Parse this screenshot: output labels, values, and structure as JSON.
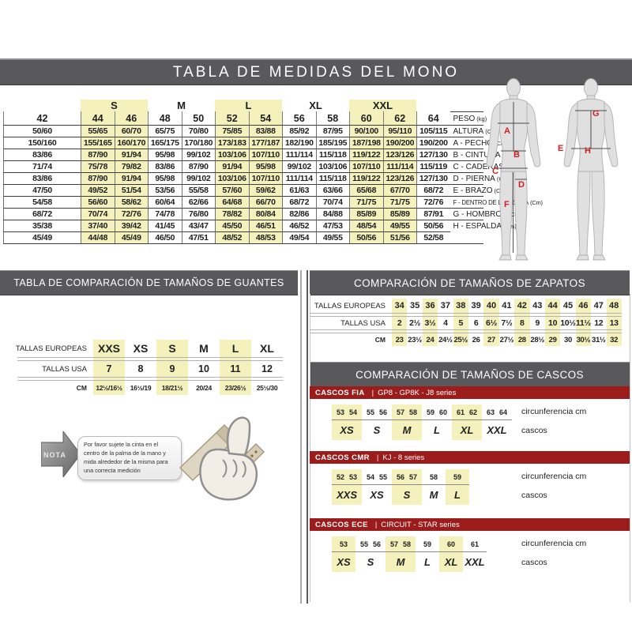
{
  "page": {
    "main_title": "TABLA DE MEDIDAS DEL MONO"
  },
  "mono_table": {
    "group_headers": [
      {
        "label": "",
        "span": 1,
        "highlight": false
      },
      {
        "label": "S",
        "span": 2,
        "highlight": true
      },
      {
        "label": "M",
        "span": 2,
        "highlight": false
      },
      {
        "label": "L",
        "span": 2,
        "highlight": true
      },
      {
        "label": "XL",
        "span": 2,
        "highlight": false
      },
      {
        "label": "XXL",
        "span": 2,
        "highlight": true
      },
      {
        "label": "",
        "span": 1,
        "highlight": false
      }
    ],
    "sizes": [
      "42",
      "44",
      "46",
      "48",
      "50",
      "52",
      "54",
      "56",
      "58",
      "60",
      "62",
      "64"
    ],
    "highlight_cols": [
      1,
      2,
      5,
      6,
      9,
      10
    ],
    "rows": [
      {
        "label": "PESO",
        "unit": "(kg)",
        "values": [
          "50/60",
          "55/65",
          "60/70",
          "65/75",
          "70/80",
          "75/85",
          "83/88",
          "85/92",
          "87/95",
          "90/100",
          "95/110",
          "105/115"
        ]
      },
      {
        "label": "ALTURA",
        "unit": "(Cm)",
        "values": [
          "150/160",
          "155/165",
          "160/170",
          "165/175",
          "170/180",
          "173/183",
          "177/187",
          "182/190",
          "185/195",
          "187/198",
          "190/200",
          "190/200"
        ]
      },
      {
        "label": "A - PECHO",
        "unit": "(Cm)",
        "values": [
          "83/86",
          "87/90",
          "91/94",
          "95/98",
          "99/102",
          "103/106",
          "107/110",
          "111/114",
          "115/118",
          "119/122",
          "123/126",
          "127/130"
        ]
      },
      {
        "label": "B - CINTURA",
        "unit": "(Cm)",
        "values": [
          "71/74",
          "75/78",
          "79/82",
          "83/86",
          "87/90",
          "91/94",
          "95/98",
          "99/102",
          "103/106",
          "107/110",
          "111/114",
          "115/119"
        ]
      },
      {
        "label": "C - CADERAS",
        "unit": "(Cm)",
        "values": [
          "83/86",
          "87/90",
          "91/94",
          "95/98",
          "99/102",
          "103/106",
          "107/110",
          "111/114",
          "115/118",
          "119/122",
          "123/126",
          "127/130"
        ]
      },
      {
        "label": "D - PIERNA",
        "unit": "(Cm)",
        "values": [
          "47/50",
          "49/52",
          "51/54",
          "53/56",
          "55/58",
          "57/60",
          "59/62",
          "61/63",
          "63/66",
          "65/68",
          "67/70",
          "68/72"
        ]
      },
      {
        "label": "E - BRAZO",
        "unit": "(Cm)",
        "values": [
          "54/58",
          "56/60",
          "58/62",
          "60/64",
          "62/66",
          "64/68",
          "66/70",
          "68/72",
          "70/74",
          "71/75",
          "71/75",
          "72/76"
        ]
      },
      {
        "label": "F - DENTRO DE LA PIERNA",
        "unit": "(Cm)",
        "small": true,
        "values": [
          "68/72",
          "70/74",
          "72/76",
          "74/78",
          "76/80",
          "78/82",
          "80/84",
          "82/86",
          "84/88",
          "85/89",
          "85/89",
          "87/91"
        ]
      },
      {
        "label": "G - HOMBROS",
        "unit": "(Cm)",
        "values": [
          "35/38",
          "37/40",
          "39/42",
          "41/45",
          "43/47",
          "45/50",
          "46/51",
          "46/52",
          "47/53",
          "48/54",
          "49/55",
          "50/56"
        ]
      },
      {
        "label": "H - ESPALDA",
        "unit": "(Cm)",
        "values": [
          "45/49",
          "44/48",
          "45/49",
          "46/50",
          "47/51",
          "48/52",
          "48/53",
          "49/54",
          "49/55",
          "50/56",
          "51/56",
          "52/58"
        ]
      }
    ]
  },
  "body_diagram": {
    "markers": {
      "chest": "A",
      "waist": "B",
      "hips": "C",
      "thigh": "D",
      "arm": "E",
      "inseam": "F",
      "shoulders": "G",
      "back": "H"
    }
  },
  "gloves": {
    "title": "TABLA DE COMPARACIÓN DE TAMAÑOS DE GUANTES",
    "highlight_cols": [
      0,
      2,
      4
    ],
    "rows": [
      {
        "label": "TALLAS EUROPEAS",
        "cls": "gl-eur",
        "values": [
          "XXS",
          "XS",
          "S",
          "M",
          "L",
          "XL"
        ]
      },
      {
        "label": "TALLAS USA",
        "cls": "gl-usa",
        "values": [
          "7",
          "8",
          "9",
          "10",
          "11",
          "12"
        ]
      },
      {
        "label": "CM",
        "cls": "gl-cm",
        "values": [
          "12½/16½",
          "16½/19",
          "18/21½",
          "20/24",
          "23/26½",
          "25½/30"
        ]
      }
    ]
  },
  "shoes": {
    "title": "COMPARACIÓN DE TAMAÑOS DE ZAPATOS",
    "highlight_cols": [
      0,
      2,
      4,
      6,
      8,
      10,
      12,
      14
    ],
    "rows": [
      {
        "label": "TALLAS EUROPEAS",
        "cls": "sh-eur",
        "values": [
          "34",
          "35",
          "36",
          "37",
          "38",
          "39",
          "40",
          "41",
          "42",
          "43",
          "44",
          "45",
          "46",
          "47",
          "48"
        ]
      },
      {
        "label": "TALLAS USA",
        "cls": "sh-usa",
        "values": [
          "2",
          "2½",
          "3½",
          "4",
          "5",
          "6",
          "6½",
          "7½",
          "8",
          "9",
          "10",
          "10½",
          "11½",
          "12",
          "13"
        ]
      },
      {
        "label": "CM",
        "cls": "sh-cm",
        "values": [
          "23",
          "23½",
          "24",
          "24½",
          "25½",
          "26",
          "27",
          "27½",
          "28",
          "28½",
          "29",
          "30",
          "30½",
          "31½",
          "32"
        ]
      }
    ]
  },
  "helmets": {
    "title": "COMPARACIÓN DE TAMAÑOS DE CASCOS",
    "circ_label": "circunferencia cm",
    "size_label": "cascos",
    "sections": [
      {
        "name": "CASCOS FIA",
        "series": "GP8 - GP8K - J8 series",
        "groups": [
          {
            "size": "XS",
            "circ": [
              "53",
              "54"
            ],
            "highlight": true
          },
          {
            "size": "S",
            "circ": [
              "55",
              "56"
            ],
            "highlight": false
          },
          {
            "size": "M",
            "circ": [
              "57",
              "58"
            ],
            "highlight": true
          },
          {
            "size": "L",
            "circ": [
              "59",
              "60"
            ],
            "highlight": false
          },
          {
            "size": "XL",
            "circ": [
              "61",
              "62"
            ],
            "highlight": true
          },
          {
            "size": "XXL",
            "circ": [
              "63",
              "64"
            ],
            "highlight": false
          }
        ]
      },
      {
        "name": "CASCOS CMR",
        "series": "KJ - 8 series",
        "groups": [
          {
            "size": "XXS",
            "circ": [
              "52",
              "53"
            ],
            "highlight": true
          },
          {
            "size": "XS",
            "circ": [
              "54",
              "55"
            ],
            "highlight": false
          },
          {
            "size": "S",
            "circ": [
              "56",
              "57"
            ],
            "highlight": true
          },
          {
            "size": "M",
            "circ": [
              "58"
            ],
            "highlight": false
          },
          {
            "size": "L",
            "circ": [
              "59"
            ],
            "highlight": true
          }
        ]
      },
      {
        "name": "CASCOS ECE",
        "series": "CIRCUIT - STAR series",
        "groups": [
          {
            "size": "XS",
            "circ": [
              "53"
            ],
            "highlight": true
          },
          {
            "size": "S",
            "circ": [
              "55",
              "56"
            ],
            "highlight": false
          },
          {
            "size": "M",
            "circ": [
              "57",
              "58"
            ],
            "highlight": true
          },
          {
            "size": "L",
            "circ": [
              "59"
            ],
            "highlight": false
          },
          {
            "size": "XL",
            "circ": [
              "60"
            ],
            "highlight": true
          },
          {
            "size": "XXL",
            "circ": [
              "61"
            ],
            "highlight": false
          }
        ]
      }
    ]
  },
  "nota": {
    "label": "NOTA",
    "text": "Por favor sujete la cinta en el centro de la palma de la mano y mida alrededor de la misma para una correcta medición"
  },
  "colors": {
    "bar_gray": "#59595b",
    "banner_red": "#9c1c1c",
    "highlight_yellow": "#f5f1bd"
  }
}
